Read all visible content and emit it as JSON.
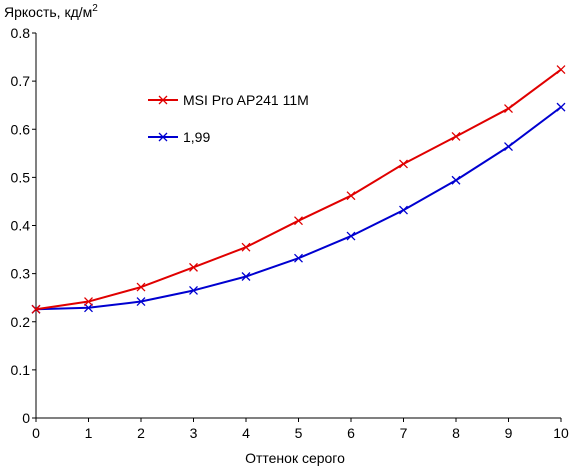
{
  "chart_data": {
    "type": "line",
    "title": "",
    "ylabel": "Яркость, кд/м",
    "ylabel_sup": "2",
    "xlabel": "Оттенок серого",
    "x": [
      0,
      1,
      2,
      3,
      4,
      5,
      6,
      7,
      8,
      9,
      10
    ],
    "xlim": [
      0,
      10
    ],
    "ylim": [
      0,
      0.8
    ],
    "xticks": [
      "0",
      "1",
      "2",
      "3",
      "4",
      "5",
      "6",
      "7",
      "8",
      "9",
      "10"
    ],
    "yticks": [
      "0",
      "0.1",
      "0.2",
      "0.3",
      "0.4",
      "0.5",
      "0.6",
      "0.7",
      "0.8"
    ],
    "grid": false,
    "legend_position": "upper-left-inside",
    "series": [
      {
        "name": "MSI Pro AP241 11M",
        "color": "#e00000",
        "marker": "x",
        "values": [
          0.226,
          0.242,
          0.272,
          0.313,
          0.355,
          0.41,
          0.462,
          0.528,
          0.585,
          0.643,
          0.724
        ]
      },
      {
        "name": "1,99",
        "color": "#0000d0",
        "marker": "x",
        "values": [
          0.226,
          0.229,
          0.242,
          0.265,
          0.294,
          0.332,
          0.378,
          0.432,
          0.494,
          0.564,
          0.646
        ]
      }
    ]
  }
}
